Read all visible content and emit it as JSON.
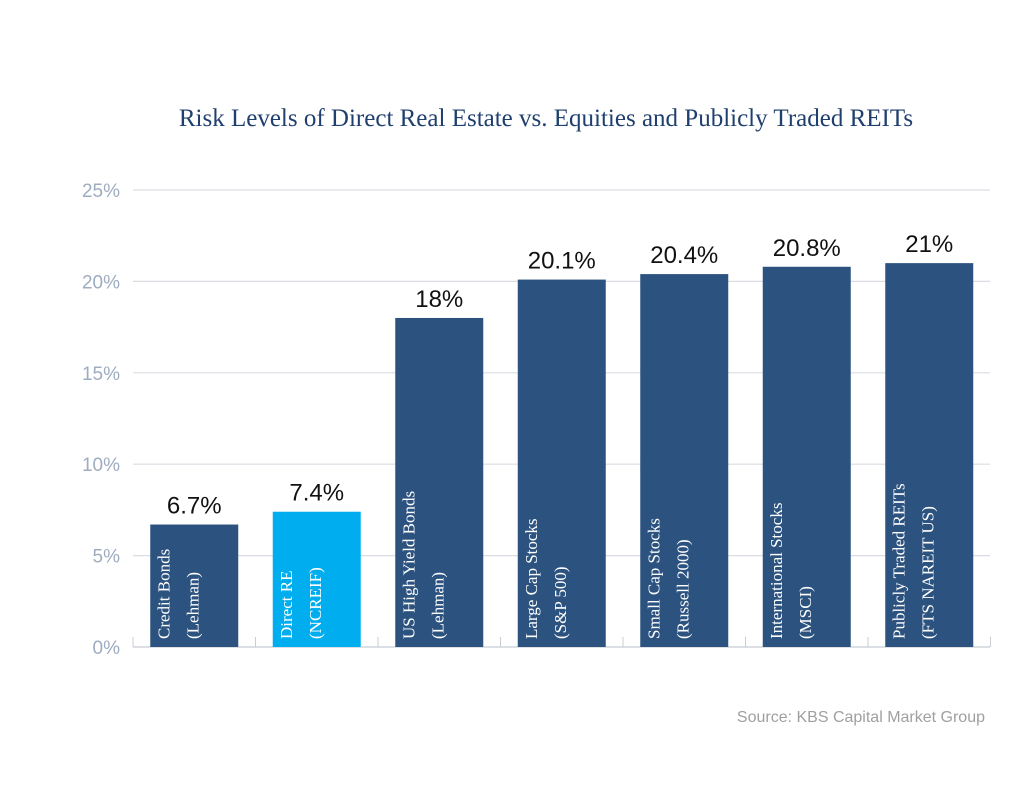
{
  "chart_data": {
    "type": "bar",
    "title": "Risk Levels of Direct Real Estate vs. Equities and Publicly Traded REITs",
    "categories": [
      [
        "Credit Bonds",
        "(Lehman)"
      ],
      [
        "Direct RE",
        "(NCREIF)"
      ],
      [
        "US High Yield Bonds",
        "(Lehman)"
      ],
      [
        "Large Cap Stocks",
        "(S&P 500)"
      ],
      [
        "Small Cap Stocks",
        "(Russell 2000)"
      ],
      [
        "International Stocks",
        "(MSCI)"
      ],
      [
        "Publicly Traded REITs",
        "(FTS NAREIT US)"
      ]
    ],
    "values": [
      6.7,
      7.4,
      18,
      20.1,
      20.4,
      20.8,
      21
    ],
    "data_labels": [
      "6.7%",
      "7.4%",
      "18%",
      "20.1%",
      "20.4%",
      "20.8%",
      "21%"
    ],
    "highlight_index": 1,
    "yticks": [
      0,
      5,
      10,
      15,
      20,
      25
    ],
    "ytick_labels": [
      "0%",
      "5%",
      "10%",
      "15%",
      "20%",
      "25%"
    ],
    "ylim": [
      0,
      25
    ],
    "grid": true,
    "xlabel": "",
    "ylabel": "",
    "colors": {
      "bar": "#2c5380",
      "highlight": "#00aeef",
      "title": "#1f3f6e",
      "grid": "#d9dde3"
    }
  },
  "source": "Source: KBS Capital Market Group"
}
